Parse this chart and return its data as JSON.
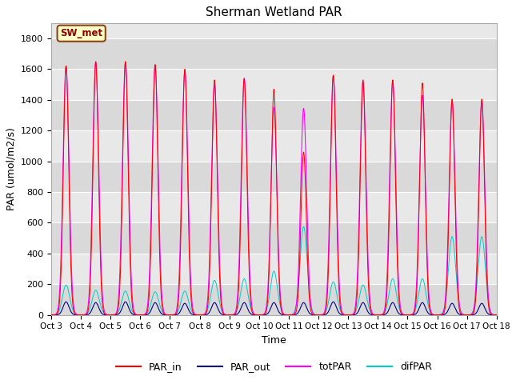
{
  "title": "Sherman Wetland PAR",
  "xlabel": "Time",
  "ylabel": "PAR (umol/m2/s)",
  "ylim": [
    0,
    1900
  ],
  "yticks": [
    0,
    200,
    400,
    600,
    800,
    1000,
    1200,
    1400,
    1600,
    1800
  ],
  "xtick_labels": [
    "Oct 3",
    "Oct 4",
    "Oct 5",
    "Oct 6",
    "Oct 7",
    "Oct 8",
    "Oct 9",
    "Oct 10",
    "Oct 11",
    "Oct 12",
    "Oct 13",
    "Oct 14",
    "Oct 15",
    "Oct 16",
    "Oct 17",
    "Oct 18"
  ],
  "annotation_text": "SW_met",
  "annotation_bg": "#FFFFC8",
  "annotation_border": "#8B4513",
  "bg_color": "#E8E8E8",
  "bg_band_color": "#D4D4D4",
  "color_PAR_in": "#FF0000",
  "color_PAR_out": "#00008B",
  "color_totPAR": "#FF00FF",
  "color_difPAR": "#00CCCC",
  "legend_labels": [
    "PAR_in",
    "PAR_out",
    "totPAR",
    "difPAR"
  ],
  "peak_PAR_in": [
    1620,
    1650,
    1650,
    1630,
    1600,
    1530,
    1540,
    1470,
    1060,
    1560,
    1530,
    1530,
    1510,
    1405,
    1405
  ],
  "peak_totPAR": [
    1620,
    1645,
    1645,
    1625,
    1590,
    1500,
    1540,
    1350,
    1345,
    1560,
    1520,
    1525,
    1430,
    1390,
    1390
  ],
  "peak_PAR_out": [
    85,
    80,
    85,
    80,
    75,
    80,
    80,
    80,
    80,
    85,
    80,
    80,
    80,
    75,
    75
  ],
  "peak_difPAR": [
    195,
    160,
    155,
    150,
    155,
    225,
    235,
    285,
    575,
    215,
    195,
    235,
    235,
    510,
    510
  ],
  "n_days": 15,
  "points_per_day": 288
}
